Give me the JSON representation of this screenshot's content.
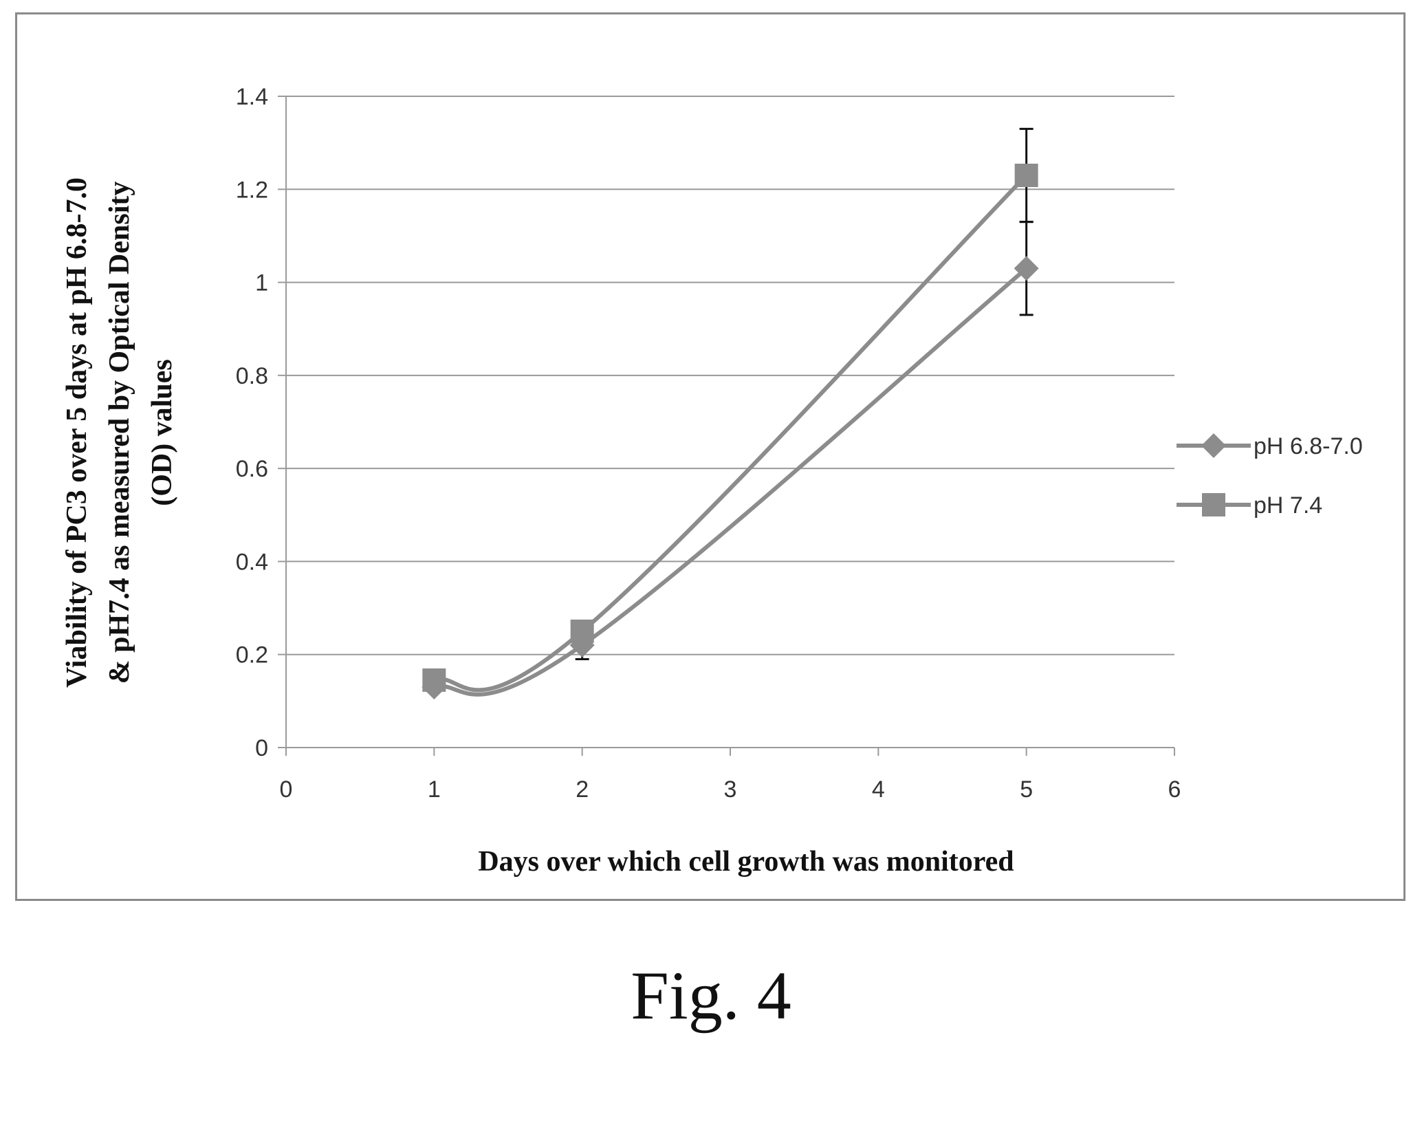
{
  "chart_data": {
    "type": "line",
    "title": "",
    "xlabel": "Days over which cell growth  was monitored",
    "ylabel_lines": [
      "Viability of PC3 over 5 days at pH 6.8-7.0",
      "& pH7.4 as measured by Optical Density",
      "(OD) values"
    ],
    "xlim": [
      0,
      6
    ],
    "ylim": [
      0,
      1.4
    ],
    "x_ticks": [
      "0",
      "1",
      "2",
      "3",
      "4",
      "5",
      "6"
    ],
    "y_ticks": [
      "0",
      "0.2",
      "0.4",
      "0.6",
      "0.8",
      "1",
      "1.2",
      "1.4"
    ],
    "grid": "horizontal",
    "legend_position": "right",
    "series": [
      {
        "name": "pH 6.8-7.0",
        "marker": "diamond",
        "color": "#8c8c8c",
        "x": [
          1,
          2,
          5
        ],
        "y": [
          0.13,
          0.22,
          1.03
        ],
        "error": [
          0.01,
          0.03,
          0.1
        ]
      },
      {
        "name": "pH 7.4",
        "marker": "square",
        "color": "#8c8c8c",
        "x": [
          1,
          2,
          5
        ],
        "y": [
          0.145,
          0.25,
          1.23
        ],
        "error": [
          0.01,
          0.02,
          0.1
        ]
      }
    ]
  },
  "caption": "Fig. 4"
}
